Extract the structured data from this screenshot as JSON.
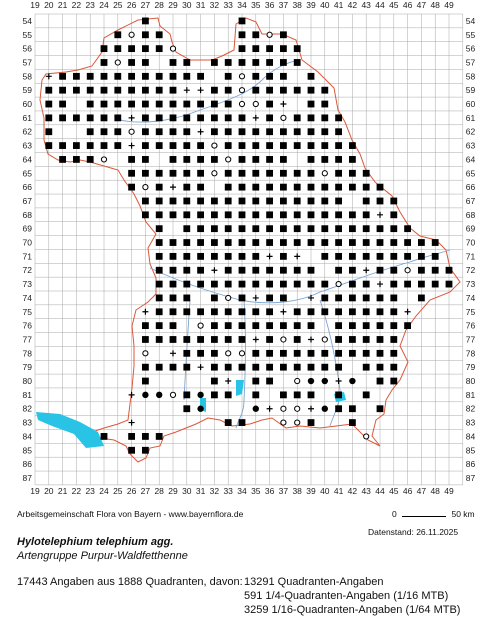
{
  "map": {
    "x_axis_labels": [
      "19",
      "20",
      "21",
      "22",
      "23",
      "24",
      "25",
      "26",
      "27",
      "28",
      "29",
      "30",
      "31",
      "32",
      "33",
      "34",
      "35",
      "36",
      "37",
      "38",
      "39",
      "40",
      "41",
      "42",
      "43",
      "44",
      "45",
      "46",
      "47",
      "48",
      "49"
    ],
    "y_axis_labels": [
      "54",
      "55",
      "56",
      "57",
      "58",
      "59",
      "60",
      "61",
      "62",
      "63",
      "64",
      "65",
      "66",
      "67",
      "68",
      "69",
      "70",
      "71",
      "72",
      "73",
      "74",
      "75",
      "76",
      "77",
      "78",
      "79",
      "80",
      "81",
      "82",
      "83",
      "84",
      "85",
      "86",
      "87"
    ],
    "colors": {
      "grid": "#a8a8a8",
      "border": "#d9583b",
      "water": "#29c3e6",
      "river": "#7aa6d6",
      "dot": "#000000"
    }
  },
  "footer": {
    "credit": "Arbeitsgemeinschaft Flora von Bayern - www.bayernflora.de",
    "scale_0": "0",
    "scale_50": "50 km",
    "date": "Datenstand: 26.11.2025"
  },
  "species": {
    "name": "Hylotelephium telephium agg.",
    "group": "Artengruppe Purpur-Waldfetthenne"
  },
  "stats": {
    "total": "17443 Angaben aus 1888 Quadranten, davon:",
    "quadrant": "13291 Quadranten-Angaben",
    "quarter": "591 1/4-Quadranten-Angaben (1/16 MTB)",
    "sixteenth": "3259 1/16-Quadranten-Angaben (1/64 MTB)"
  }
}
